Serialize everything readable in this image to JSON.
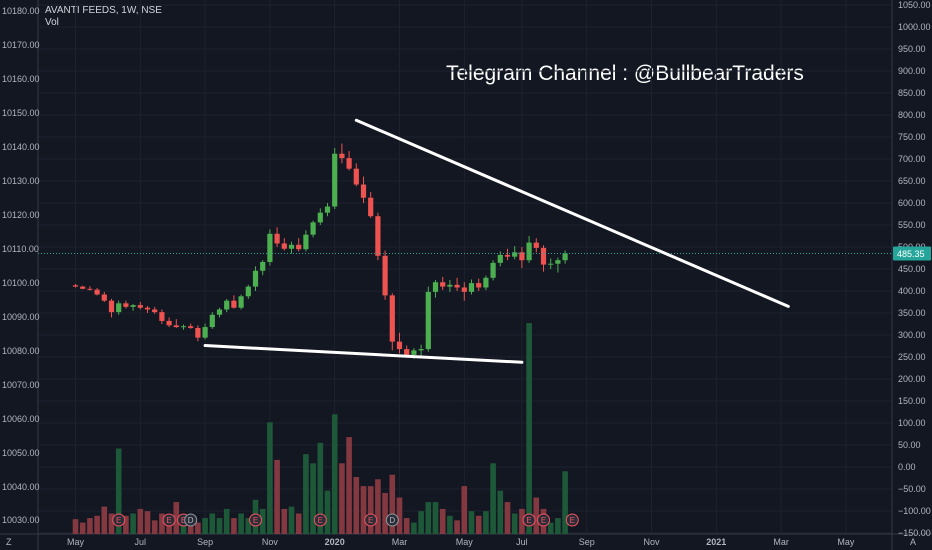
{
  "header": {
    "symbol_line": "AVANTI FEEDS, 1W, NSE",
    "volume_label": "Vol"
  },
  "annotation": "Telegram Channel : @BullbearTraders",
  "current_price_label": "485.35",
  "corner_labels": {
    "left": "Z",
    "right": "A"
  },
  "colors": {
    "background": "#131722",
    "up": "#26a69a",
    "up_candle": "#4caf50",
    "down_candle": "#ef5350",
    "price_tag": "#26a69a",
    "trendline": "#ffffff"
  },
  "chart_data": {
    "type": "candlestick",
    "title": "AVANTI FEEDS, 1W, NSE",
    "right_axis": {
      "ticks": [
        1050,
        1000,
        950,
        900,
        850,
        800,
        750,
        700,
        650,
        600,
        550,
        500,
        450,
        400,
        350,
        300,
        250,
        200,
        150,
        100,
        50,
        0,
        -50,
        -100,
        -150
      ],
      "tick_labels": [
        "1050.00",
        "1000.00",
        "950.00",
        "900.00",
        "850.00",
        "800.00",
        "750.00",
        "700.00",
        "650.00",
        "600.00",
        "550.00",
        "500.00",
        "450.00",
        "400.00",
        "350.00",
        "300.00",
        "250.00",
        "200.00",
        "150.00",
        "100.00",
        "50.00",
        "0.00",
        "−50.00",
        "−100.00",
        "−150.00"
      ],
      "range": [
        -170,
        1062
      ]
    },
    "left_axis": {
      "ticks": [
        10180,
        10170,
        10160,
        10150,
        10140,
        10130,
        10120,
        10110,
        10100,
        10090,
        10080,
        10070,
        10060,
        10050,
        10040,
        10030
      ],
      "tick_labels": [
        "10180.00",
        "10170.00",
        "10160.00",
        "10150.00",
        "10140.00",
        "10130.00",
        "10120.00",
        "10110.00",
        "10100.00",
        "10090.00",
        "10080.00",
        "10070.00",
        "10060.00",
        "10050.00",
        "10040.00",
        "10030.00"
      ]
    },
    "x_axis": {
      "labels": [
        "May",
        "Jul",
        "Sep",
        "Nov",
        "2020",
        "Mar",
        "May",
        "Jul",
        "Sep",
        "Nov",
        "2021",
        "Mar",
        "May"
      ],
      "bold": [
        "2020",
        "2021"
      ],
      "label_week_index": [
        0,
        9,
        18,
        27,
        36,
        45,
        54,
        62,
        71,
        80,
        89,
        98,
        107
      ]
    },
    "current_price": 485.35,
    "candles": [
      {
        "o": 413,
        "h": 416,
        "l": 408,
        "c": 410,
        "v": 13
      },
      {
        "o": 410,
        "h": 412,
        "l": 404,
        "c": 405,
        "v": 10
      },
      {
        "o": 405,
        "h": 411,
        "l": 401,
        "c": 403,
        "v": 14
      },
      {
        "o": 403,
        "h": 407,
        "l": 390,
        "c": 392,
        "v": 16
      },
      {
        "o": 392,
        "h": 398,
        "l": 375,
        "c": 378,
        "v": 24
      },
      {
        "o": 378,
        "h": 382,
        "l": 340,
        "c": 352,
        "v": 18
      },
      {
        "o": 352,
        "h": 378,
        "l": 346,
        "c": 372,
        "v": 75
      },
      {
        "o": 372,
        "h": 378,
        "l": 360,
        "c": 364,
        "v": 16
      },
      {
        "o": 364,
        "h": 370,
        "l": 355,
        "c": 368,
        "v": 18
      },
      {
        "o": 368,
        "h": 375,
        "l": 358,
        "c": 362,
        "v": 22
      },
      {
        "o": 362,
        "h": 366,
        "l": 350,
        "c": 358,
        "v": 20
      },
      {
        "o": 358,
        "h": 364,
        "l": 348,
        "c": 352,
        "v": 12
      },
      {
        "o": 352,
        "h": 358,
        "l": 325,
        "c": 332,
        "v": 18
      },
      {
        "o": 332,
        "h": 340,
        "l": 318,
        "c": 322,
        "v": 14
      },
      {
        "o": 322,
        "h": 336,
        "l": 316,
        "c": 318,
        "v": 28
      },
      {
        "o": 318,
        "h": 324,
        "l": 312,
        "c": 320,
        "v": 14
      },
      {
        "o": 320,
        "h": 326,
        "l": 314,
        "c": 316,
        "v": 10
      },
      {
        "o": 316,
        "h": 322,
        "l": 286,
        "c": 294,
        "v": 10
      },
      {
        "o": 294,
        "h": 326,
        "l": 290,
        "c": 318,
        "v": 14
      },
      {
        "o": 318,
        "h": 352,
        "l": 314,
        "c": 346,
        "v": 18
      },
      {
        "o": 346,
        "h": 362,
        "l": 340,
        "c": 358,
        "v": 14
      },
      {
        "o": 358,
        "h": 382,
        "l": 352,
        "c": 378,
        "v": 22
      },
      {
        "o": 378,
        "h": 390,
        "l": 360,
        "c": 362,
        "v": 14
      },
      {
        "o": 362,
        "h": 392,
        "l": 358,
        "c": 388,
        "v": 18
      },
      {
        "o": 388,
        "h": 414,
        "l": 382,
        "c": 410,
        "v": 14
      },
      {
        "o": 410,
        "h": 456,
        "l": 400,
        "c": 446,
        "v": 30
      },
      {
        "o": 446,
        "h": 470,
        "l": 436,
        "c": 466,
        "v": 22
      },
      {
        "o": 466,
        "h": 540,
        "l": 458,
        "c": 530,
        "v": 98
      },
      {
        "o": 530,
        "h": 545,
        "l": 500,
        "c": 508,
        "v": 65
      },
      {
        "o": 508,
        "h": 520,
        "l": 492,
        "c": 496,
        "v": 22
      },
      {
        "o": 496,
        "h": 512,
        "l": 485,
        "c": 505,
        "v": 24
      },
      {
        "o": 505,
        "h": 520,
        "l": 490,
        "c": 495,
        "v": 18
      },
      {
        "o": 495,
        "h": 538,
        "l": 490,
        "c": 528,
        "v": 70
      },
      {
        "o": 528,
        "h": 560,
        "l": 522,
        "c": 556,
        "v": 62
      },
      {
        "o": 556,
        "h": 588,
        "l": 550,
        "c": 578,
        "v": 80
      },
      {
        "o": 578,
        "h": 600,
        "l": 570,
        "c": 592,
        "v": 38
      },
      {
        "o": 592,
        "h": 725,
        "l": 586,
        "c": 712,
        "v": 105
      },
      {
        "o": 712,
        "h": 735,
        "l": 690,
        "c": 702,
        "v": 62
      },
      {
        "o": 702,
        "h": 718,
        "l": 674,
        "c": 678,
        "v": 85
      },
      {
        "o": 678,
        "h": 690,
        "l": 638,
        "c": 642,
        "v": 50
      },
      {
        "o": 642,
        "h": 660,
        "l": 600,
        "c": 612,
        "v": 42
      },
      {
        "o": 612,
        "h": 625,
        "l": 566,
        "c": 570,
        "v": 42
      },
      {
        "o": 570,
        "h": 578,
        "l": 470,
        "c": 480,
        "v": 48
      },
      {
        "o": 480,
        "h": 492,
        "l": 380,
        "c": 390,
        "v": 36
      },
      {
        "o": 390,
        "h": 395,
        "l": 265,
        "c": 285,
        "v": 52
      },
      {
        "o": 285,
        "h": 305,
        "l": 258,
        "c": 268,
        "v": 32
      },
      {
        "o": 268,
        "h": 276,
        "l": 248,
        "c": 255,
        "v": 14
      },
      {
        "o": 255,
        "h": 270,
        "l": 246,
        "c": 265,
        "v": 10
      },
      {
        "o": 265,
        "h": 278,
        "l": 250,
        "c": 268,
        "v": 20
      },
      {
        "o": 268,
        "h": 410,
        "l": 262,
        "c": 398,
        "v": 28
      },
      {
        "o": 398,
        "h": 425,
        "l": 385,
        "c": 420,
        "v": 28
      },
      {
        "o": 420,
        "h": 432,
        "l": 402,
        "c": 410,
        "v": 22
      },
      {
        "o": 410,
        "h": 425,
        "l": 398,
        "c": 414,
        "v": 16
      },
      {
        "o": 414,
        "h": 430,
        "l": 400,
        "c": 408,
        "v": 12
      },
      {
        "o": 408,
        "h": 420,
        "l": 378,
        "c": 398,
        "v": 42
      },
      {
        "o": 398,
        "h": 426,
        "l": 392,
        "c": 418,
        "v": 20
      },
      {
        "o": 418,
        "h": 428,
        "l": 400,
        "c": 408,
        "v": 16
      },
      {
        "o": 408,
        "h": 435,
        "l": 402,
        "c": 430,
        "v": 20
      },
      {
        "o": 430,
        "h": 470,
        "l": 424,
        "c": 464,
        "v": 62
      },
      {
        "o": 464,
        "h": 490,
        "l": 456,
        "c": 482,
        "v": 38
      },
      {
        "o": 482,
        "h": 496,
        "l": 470,
        "c": 478,
        "v": 28
      },
      {
        "o": 478,
        "h": 502,
        "l": 472,
        "c": 488,
        "v": 18
      },
      {
        "o": 488,
        "h": 500,
        "l": 452,
        "c": 470,
        "v": 22
      },
      {
        "o": 470,
        "h": 525,
        "l": 464,
        "c": 510,
        "v": 185
      },
      {
        "o": 510,
        "h": 520,
        "l": 488,
        "c": 498,
        "v": 32
      },
      {
        "o": 498,
        "h": 504,
        "l": 444,
        "c": 460,
        "v": 22
      },
      {
        "o": 460,
        "h": 474,
        "l": 450,
        "c": 462,
        "v": 10
      },
      {
        "o": 462,
        "h": 476,
        "l": 442,
        "c": 470,
        "v": 14
      },
      {
        "o": 470,
        "h": 492,
        "l": 462,
        "c": 485.35,
        "v": 55
      }
    ],
    "trendlines": [
      {
        "from": [
          39,
          788
        ],
        "to": [
          99,
          365
        ]
      },
      {
        "from": [
          18,
          276
        ],
        "to": [
          62,
          238
        ]
      }
    ],
    "event_markers": [
      {
        "week": 6,
        "type": "E"
      },
      {
        "week": 13,
        "type": "E"
      },
      {
        "week": 15,
        "type": "E"
      },
      {
        "week": 16,
        "type": "D"
      },
      {
        "week": 25,
        "type": "E"
      },
      {
        "week": 34,
        "type": "E"
      },
      {
        "week": 41,
        "type": "E"
      },
      {
        "week": 44,
        "type": "D"
      },
      {
        "week": 63,
        "type": "E"
      },
      {
        "week": 65,
        "type": "E"
      },
      {
        "week": 69,
        "type": "E"
      }
    ]
  }
}
